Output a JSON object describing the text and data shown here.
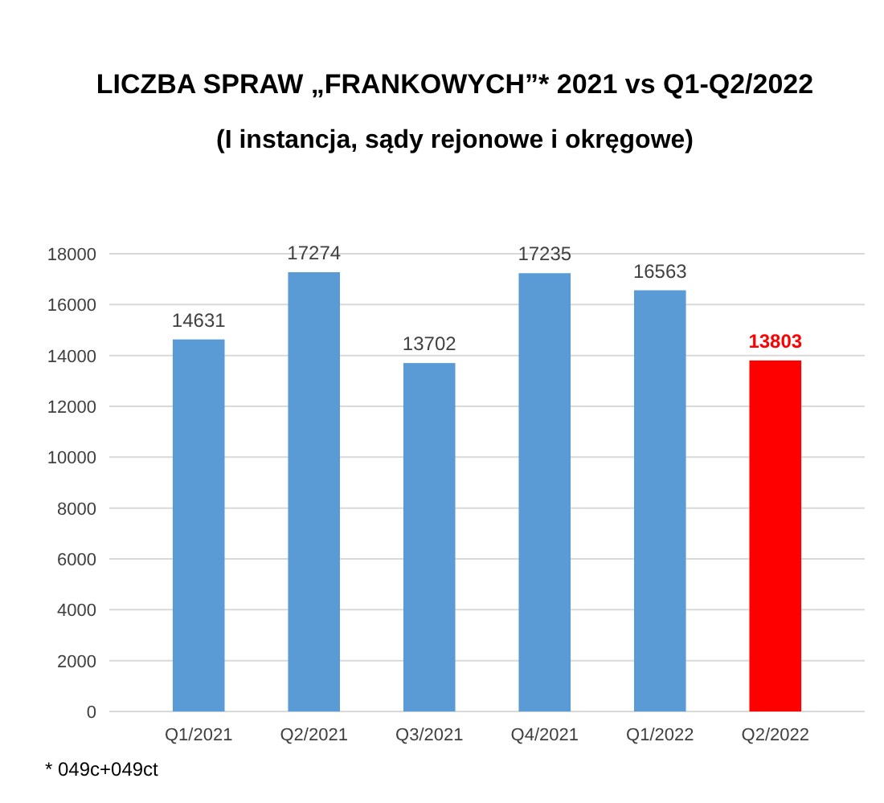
{
  "chart_data": {
    "type": "bar",
    "title": "LICZBA SPRAW „FRANKOWYCH”* 2021 vs Q1-Q2/2022",
    "subtitle": "(I instancja, sądy rejonowe i okręgowe)",
    "categories": [
      "Q1/2021",
      "Q2/2021",
      "Q3/2021",
      "Q4/2021",
      "Q1/2022",
      "Q2/2022"
    ],
    "values": [
      14631,
      17274,
      13702,
      17235,
      16563,
      13803
    ],
    "colors": [
      "#5b9bd5",
      "#5b9bd5",
      "#5b9bd5",
      "#5b9bd5",
      "#5b9bd5",
      "#ff0000"
    ],
    "ylim": [
      0,
      18000
    ],
    "yticks": [
      0,
      2000,
      4000,
      6000,
      8000,
      10000,
      12000,
      14000,
      16000,
      18000
    ],
    "grid": "y",
    "data_labels": true,
    "annotations": [
      "* 049c+049ct"
    ]
  }
}
